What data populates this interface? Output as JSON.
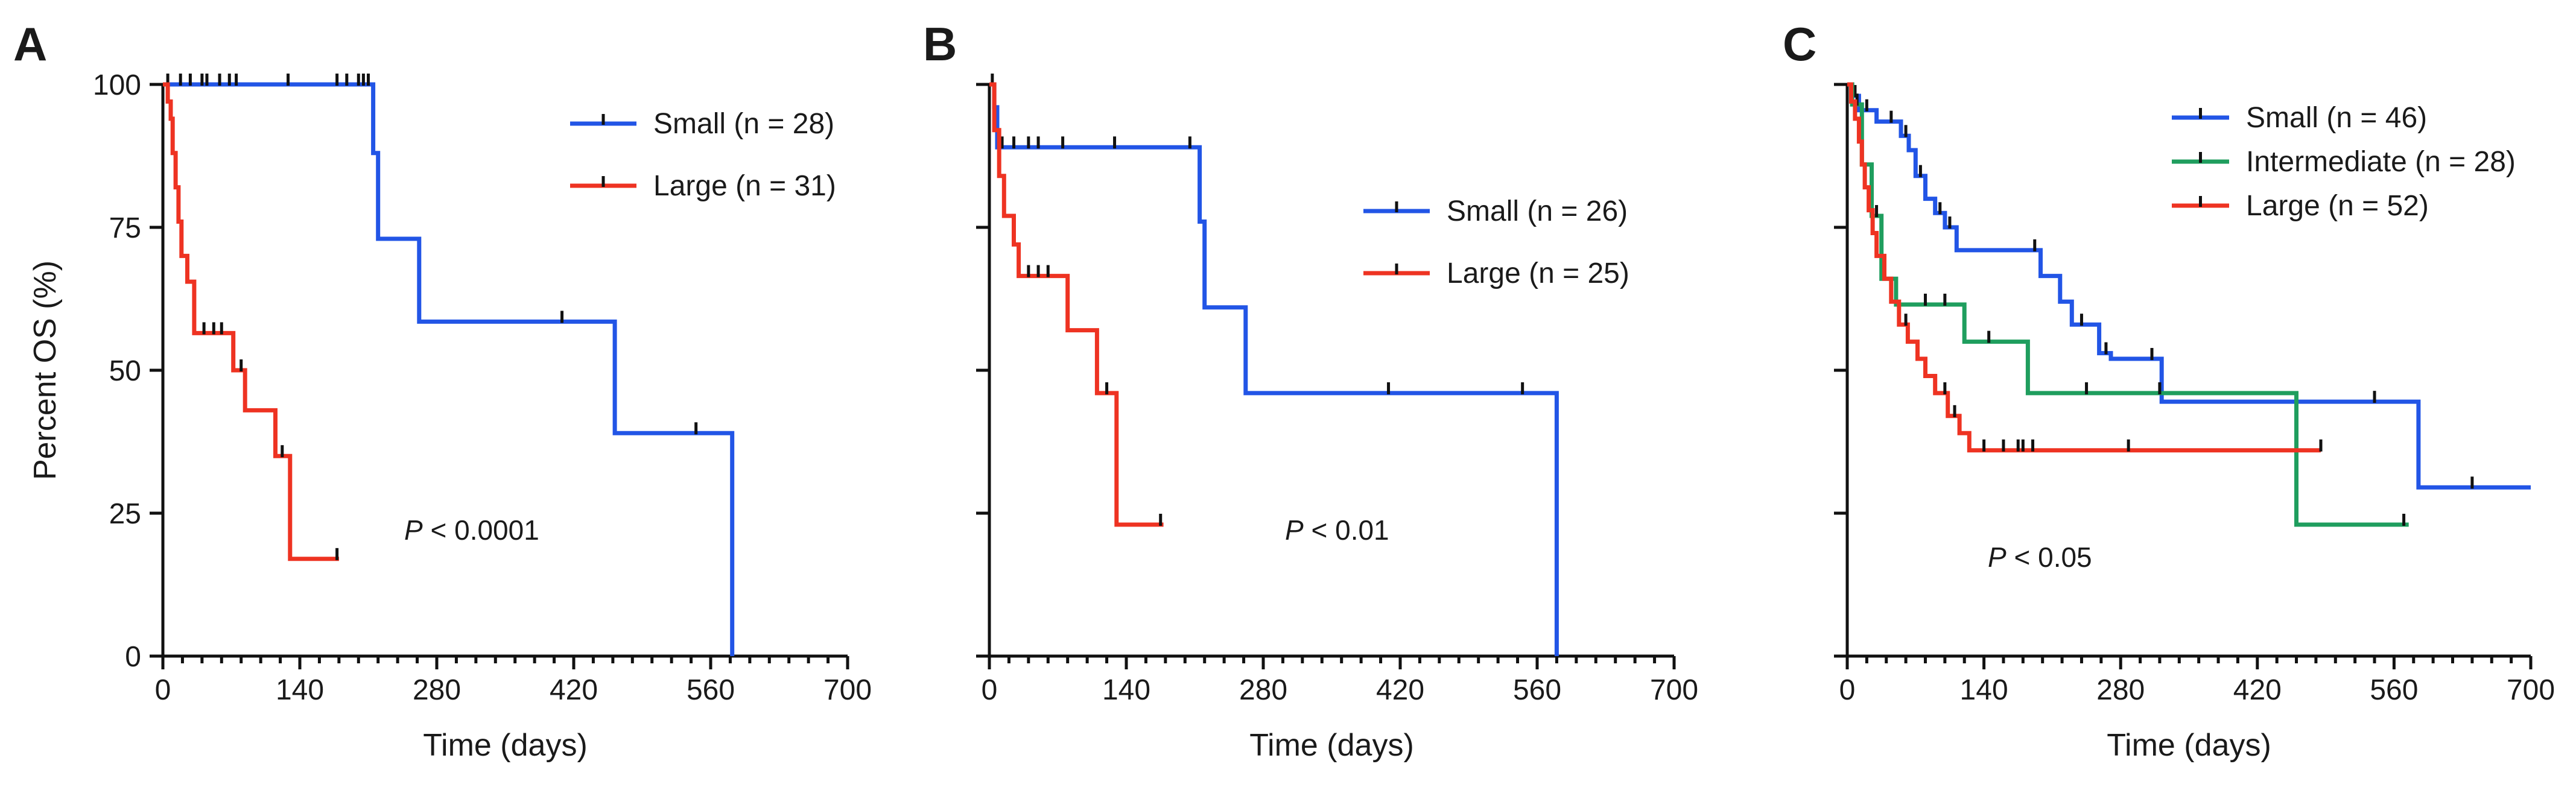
{
  "chart_data": [
    {
      "type": "line",
      "panel": "A",
      "xlabel": "Time (days)",
      "ylabel": "Percent OS (%)",
      "xlim": [
        0,
        700
      ],
      "ylim": [
        0,
        100
      ],
      "xticks": [
        0,
        140,
        280,
        420,
        560,
        700
      ],
      "yticks": [
        0,
        25,
        50,
        75,
        100
      ],
      "show_y_labels": true,
      "pvalue": {
        "p": "P",
        "rest": " < 0.0001"
      },
      "series": [
        {
          "name": "Small (n = 28)",
          "color": "#2255e6",
          "steps": [
            [
              0,
              100
            ],
            [
              215,
              100
            ],
            [
              215,
              88
            ],
            [
              220,
              88
            ],
            [
              220,
              73
            ],
            [
              262,
              73
            ],
            [
              262,
              58.5
            ],
            [
              462,
              58.5
            ],
            [
              462,
              39
            ],
            [
              582,
              39
            ],
            [
              582,
              0
            ]
          ],
          "censors": [
            [
              5,
              100
            ],
            [
              18,
              100
            ],
            [
              28,
              100
            ],
            [
              40,
              100
            ],
            [
              45,
              100
            ],
            [
              58,
              100
            ],
            [
              68,
              100
            ],
            [
              75,
              100
            ],
            [
              128,
              100
            ],
            [
              178,
              100
            ],
            [
              188,
              100
            ],
            [
              200,
              100
            ],
            [
              205,
              100
            ],
            [
              210,
              100
            ],
            [
              408,
              58.5
            ],
            [
              545,
              39
            ]
          ]
        },
        {
          "name": "Large (n = 31)",
          "color": "#ee3322",
          "steps": [
            [
              0,
              100
            ],
            [
              5,
              100
            ],
            [
              5,
              97
            ],
            [
              8,
              97
            ],
            [
              8,
              94
            ],
            [
              10,
              94
            ],
            [
              10,
              88
            ],
            [
              13,
              88
            ],
            [
              13,
              82
            ],
            [
              16,
              82
            ],
            [
              16,
              76
            ],
            [
              19,
              76
            ],
            [
              19,
              70
            ],
            [
              25,
              70
            ],
            [
              25,
              65.5
            ],
            [
              32,
              65.5
            ],
            [
              32,
              56.5
            ],
            [
              72,
              56.5
            ],
            [
              72,
              50
            ],
            [
              84,
              50
            ],
            [
              84,
              43
            ],
            [
              115,
              43
            ],
            [
              115,
              35
            ],
            [
              130,
              35
            ],
            [
              130,
              17
            ],
            [
              180,
              17
            ]
          ],
          "censors": [
            [
              42,
              56.5
            ],
            [
              52,
              56.5
            ],
            [
              60,
              56.5
            ],
            [
              80,
              50
            ],
            [
              122,
              35
            ],
            [
              178,
              17
            ]
          ]
        }
      ]
    },
    {
      "type": "line",
      "panel": "B",
      "xlabel": "Time (days)",
      "ylabel": "",
      "xlim": [
        0,
        700
      ],
      "ylim": [
        0,
        100
      ],
      "xticks": [
        0,
        140,
        280,
        420,
        560,
        700
      ],
      "yticks": [
        0,
        25,
        50,
        75,
        100
      ],
      "show_y_labels": false,
      "pvalue": {
        "p": "P",
        "rest": " < 0.01"
      },
      "series": [
        {
          "name": "Small (n = 26)",
          "color": "#2255e6",
          "steps": [
            [
              0,
              100
            ],
            [
              5,
              100
            ],
            [
              5,
              96
            ],
            [
              8,
              96
            ],
            [
              8,
              89
            ],
            [
              215,
              89
            ],
            [
              215,
              76
            ],
            [
              220,
              76
            ],
            [
              220,
              61
            ],
            [
              262,
              61
            ],
            [
              262,
              46
            ],
            [
              580,
              46
            ],
            [
              580,
              0
            ]
          ],
          "censors": [
            [
              3,
              100
            ],
            [
              13,
              89
            ],
            [
              25,
              89
            ],
            [
              40,
              89
            ],
            [
              50,
              89
            ],
            [
              75,
              89
            ],
            [
              128,
              89
            ],
            [
              205,
              89
            ],
            [
              408,
              46
            ],
            [
              545,
              46
            ]
          ]
        },
        {
          "name": "Large (n = 25)",
          "color": "#ee3322",
          "steps": [
            [
              0,
              100
            ],
            [
              5,
              100
            ],
            [
              5,
              92
            ],
            [
              10,
              92
            ],
            [
              10,
              84
            ],
            [
              15,
              84
            ],
            [
              15,
              77
            ],
            [
              25,
              77
            ],
            [
              25,
              72
            ],
            [
              30,
              72
            ],
            [
              30,
              66.5
            ],
            [
              80,
              66.5
            ],
            [
              80,
              57
            ],
            [
              110,
              57
            ],
            [
              110,
              46
            ],
            [
              130,
              46
            ],
            [
              130,
              23
            ],
            [
              178,
              23
            ]
          ],
          "censors": [
            [
              40,
              66.5
            ],
            [
              50,
              66.5
            ],
            [
              60,
              66.5
            ],
            [
              120,
              46
            ],
            [
              175,
              23
            ]
          ]
        }
      ]
    },
    {
      "type": "line",
      "panel": "C",
      "xlabel": "Time (days)",
      "ylabel": "",
      "xlim": [
        0,
        700
      ],
      "ylim": [
        0,
        100
      ],
      "xticks": [
        0,
        140,
        280,
        420,
        560,
        700
      ],
      "yticks": [
        0,
        25,
        50,
        75,
        100
      ],
      "show_y_labels": false,
      "pvalue": {
        "p": "P",
        "rest": " < 0.05"
      },
      "series": [
        {
          "name": "Small (n = 46)",
          "color": "#2255e6",
          "steps": [
            [
              0,
              100
            ],
            [
              5,
              100
            ],
            [
              5,
              98
            ],
            [
              12,
              98
            ],
            [
              12,
              95.5
            ],
            [
              30,
              95.5
            ],
            [
              30,
              93.5
            ],
            [
              55,
              93.5
            ],
            [
              55,
              91
            ],
            [
              63,
              91
            ],
            [
              63,
              88.5
            ],
            [
              70,
              88.5
            ],
            [
              70,
              84
            ],
            [
              80,
              84
            ],
            [
              80,
              80
            ],
            [
              90,
              80
            ],
            [
              90,
              77.5
            ],
            [
              100,
              77.5
            ],
            [
              100,
              75
            ],
            [
              112,
              75
            ],
            [
              112,
              71
            ],
            [
              198,
              71
            ],
            [
              198,
              66.5
            ],
            [
              218,
              66.5
            ],
            [
              218,
              62
            ],
            [
              230,
              62
            ],
            [
              230,
              58
            ],
            [
              258,
              58
            ],
            [
              258,
              53
            ],
            [
              270,
              53
            ],
            [
              270,
              52
            ],
            [
              322,
              52
            ],
            [
              322,
              44.5
            ],
            [
              585,
              44.5
            ],
            [
              585,
              29.5
            ],
            [
              700,
              29.5
            ]
          ],
          "censors": [
            [
              8,
              98
            ],
            [
              20,
              95.5
            ],
            [
              45,
              93.5
            ],
            [
              60,
              91
            ],
            [
              75,
              84
            ],
            [
              95,
              77.5
            ],
            [
              105,
              75
            ],
            [
              192,
              71
            ],
            [
              240,
              58
            ],
            [
              265,
              53
            ],
            [
              312,
              52
            ],
            [
              540,
              44.5
            ],
            [
              640,
              29.5
            ]
          ]
        },
        {
          "name": "Intermediate (n = 28)",
          "color": "#1f9e5e",
          "steps": [
            [
              0,
              100
            ],
            [
              5,
              100
            ],
            [
              5,
              96.5
            ],
            [
              15,
              96.5
            ],
            [
              15,
              86
            ],
            [
              25,
              86
            ],
            [
              25,
              77
            ],
            [
              35,
              77
            ],
            [
              35,
              66
            ],
            [
              50,
              66
            ],
            [
              50,
              61.5
            ],
            [
              120,
              61.5
            ],
            [
              120,
              55
            ],
            [
              185,
              55
            ],
            [
              185,
              46
            ],
            [
              460,
              46
            ],
            [
              460,
              23
            ],
            [
              575,
              23
            ]
          ],
          "censors": [
            [
              10,
              96.5
            ],
            [
              30,
              77
            ],
            [
              80,
              61.5
            ],
            [
              100,
              61.5
            ],
            [
              145,
              55
            ],
            [
              245,
              46
            ],
            [
              320,
              46
            ],
            [
              570,
              23
            ]
          ]
        },
        {
          "name": "Large (n = 52)",
          "color": "#ee3322",
          "steps": [
            [
              0,
              100
            ],
            [
              4,
              100
            ],
            [
              4,
              97
            ],
            [
              8,
              97
            ],
            [
              8,
              94
            ],
            [
              12,
              94
            ],
            [
              12,
              90
            ],
            [
              15,
              90
            ],
            [
              15,
              86
            ],
            [
              18,
              86
            ],
            [
              18,
              82
            ],
            [
              22,
              82
            ],
            [
              22,
              78
            ],
            [
              26,
              78
            ],
            [
              26,
              74
            ],
            [
              30,
              74
            ],
            [
              30,
              70
            ],
            [
              38,
              70
            ],
            [
              38,
              66
            ],
            [
              45,
              66
            ],
            [
              45,
              62
            ],
            [
              53,
              62
            ],
            [
              53,
              58
            ],
            [
              62,
              58
            ],
            [
              62,
              55
            ],
            [
              72,
              55
            ],
            [
              72,
              52
            ],
            [
              80,
              52
            ],
            [
              80,
              49
            ],
            [
              90,
              49
            ],
            [
              90,
              46
            ],
            [
              103,
              46
            ],
            [
              103,
              42
            ],
            [
              115,
              42
            ],
            [
              115,
              39
            ],
            [
              125,
              39
            ],
            [
              125,
              36
            ],
            [
              485,
              36
            ]
          ],
          "censors": [
            [
              60,
              58
            ],
            [
              100,
              46
            ],
            [
              110,
              42
            ],
            [
              140,
              36
            ],
            [
              160,
              36
            ],
            [
              175,
              36
            ],
            [
              180,
              36
            ],
            [
              190,
              36
            ],
            [
              288,
              36
            ],
            [
              485,
              36
            ]
          ]
        }
      ]
    }
  ]
}
